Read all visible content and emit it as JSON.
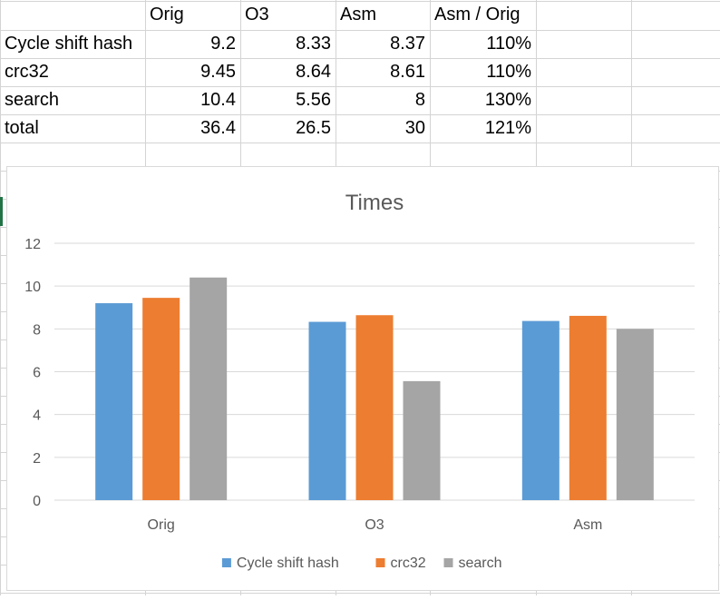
{
  "table": {
    "headers": [
      "",
      "Orig",
      "O3",
      "Asm",
      "Asm / Orig"
    ],
    "rows": [
      [
        "Cycle shift hash",
        "9.2",
        "8.33",
        "8.37",
        "110%"
      ],
      [
        "crc32",
        "9.45",
        "8.64",
        "8.61",
        "110%"
      ],
      [
        "search",
        "10.4",
        "5.56",
        "8",
        "130%"
      ],
      [
        "total",
        "36.4",
        "26.5",
        "30",
        "121%"
      ]
    ]
  },
  "chart_data": {
    "type": "bar",
    "title": "Times",
    "categories": [
      "Orig",
      "O3",
      "Asm"
    ],
    "series": [
      {
        "name": "Cycle shift hash",
        "values": [
          9.2,
          8.33,
          8.37
        ],
        "color": "#5b9bd5"
      },
      {
        "name": "crc32",
        "values": [
          9.45,
          8.64,
          8.61
        ],
        "color": "#ed7d31"
      },
      {
        "name": "search",
        "values": [
          10.4,
          5.56,
          8
        ],
        "color": "#a5a5a5"
      }
    ],
    "ylim": [
      0,
      12
    ],
    "yticks": [
      0,
      2,
      4,
      6,
      8,
      10,
      12
    ],
    "grid": true,
    "legend": "bottom"
  }
}
